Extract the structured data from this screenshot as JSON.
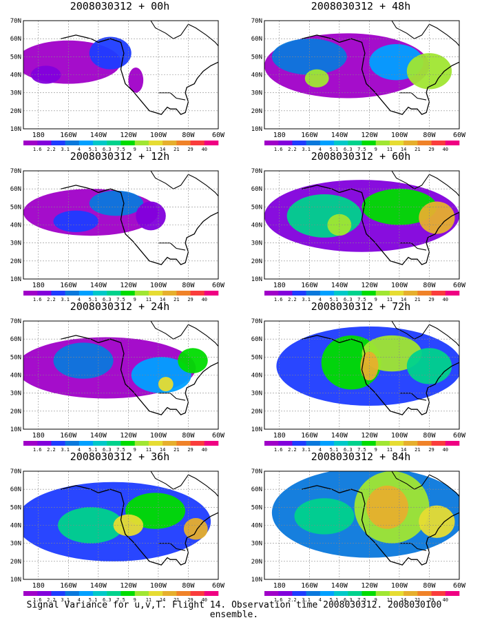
{
  "panels": [
    {
      "title": "2008030312 + 00h"
    },
    {
      "title": "2008030312 + 48h"
    },
    {
      "title": "2008030312 + 12h"
    },
    {
      "title": "2008030312 + 60h"
    },
    {
      "title": "2008030312 + 24h"
    },
    {
      "title": "2008030312 + 72h"
    },
    {
      "title": "2008030312 + 36h"
    },
    {
      "title": "2008030312 + 84h"
    }
  ],
  "lat_labels": [
    "70N",
    "60N",
    "50N",
    "40N",
    "30N",
    "20N",
    "10N"
  ],
  "lon_labels": [
    "180",
    "160W",
    "140W",
    "120W",
    "100W",
    "80W",
    "60W"
  ],
  "colorbar": {
    "levels": [
      "1.6",
      "2.2",
      "3.1",
      "4",
      "5.1",
      "6.3",
      "7.5",
      "9",
      "11",
      "14",
      "21",
      "29",
      "40"
    ],
    "colors": [
      "#a000c8",
      "#8200dc",
      "#1e3cff",
      "#0a78dc",
      "#00a0ff",
      "#00c8c8",
      "#00d28c",
      "#00dc00",
      "#a0e632",
      "#e6dc32",
      "#e6af2d",
      "#f08228",
      "#fa3c3c",
      "#f00082"
    ]
  },
  "footer": "Signal Variance for u,v,T. Flight 14. Observation time 2008030312. 2008030100 ensemble."
}
